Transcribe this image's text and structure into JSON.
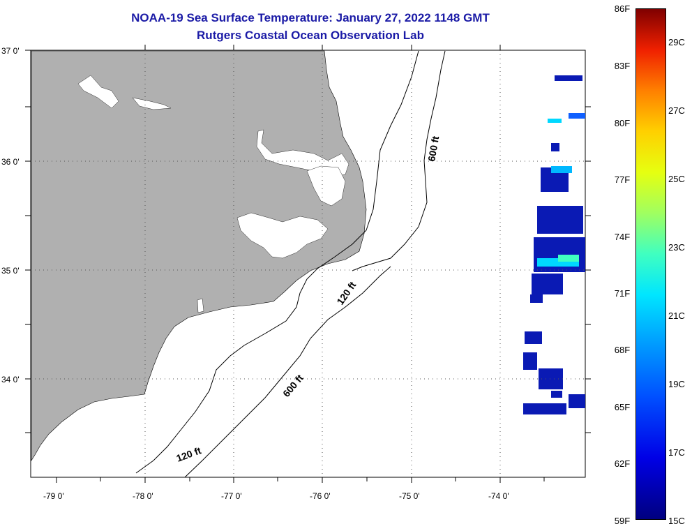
{
  "title_line1": "NOAA-19 Sea Surface Temperature:  January 27, 2022 1148 GMT",
  "title_line2": "Rutgers Coastal Ocean Observation Lab",
  "map": {
    "lat_labels": [
      "37 0'",
      "36 0'",
      "35 0'",
      "34 0'"
    ],
    "lon_labels": [
      "-79 0'",
      "-78 0'",
      "-77 0'",
      "-76 0'",
      "-75 0'",
      "-74 0'"
    ],
    "contour_labels": [
      "600 ft",
      "120 ft",
      "600 ft",
      "120 ft"
    ],
    "colors": {
      "land": "#b0b0b0",
      "ocean": "#ffffff",
      "contour": "#000000",
      "sst_cold": "#0a1ab4",
      "sst_mid": "#00d8ff"
    }
  },
  "colorbar": {
    "fahrenheit": [
      "86F",
      "83F",
      "80F",
      "77F",
      "74F",
      "71F",
      "68F",
      "65F",
      "62F",
      "59F"
    ],
    "celsius": [
      "29C",
      "27C",
      "25C",
      "23C",
      "21C",
      "19C",
      "17C",
      "15C"
    ]
  }
}
